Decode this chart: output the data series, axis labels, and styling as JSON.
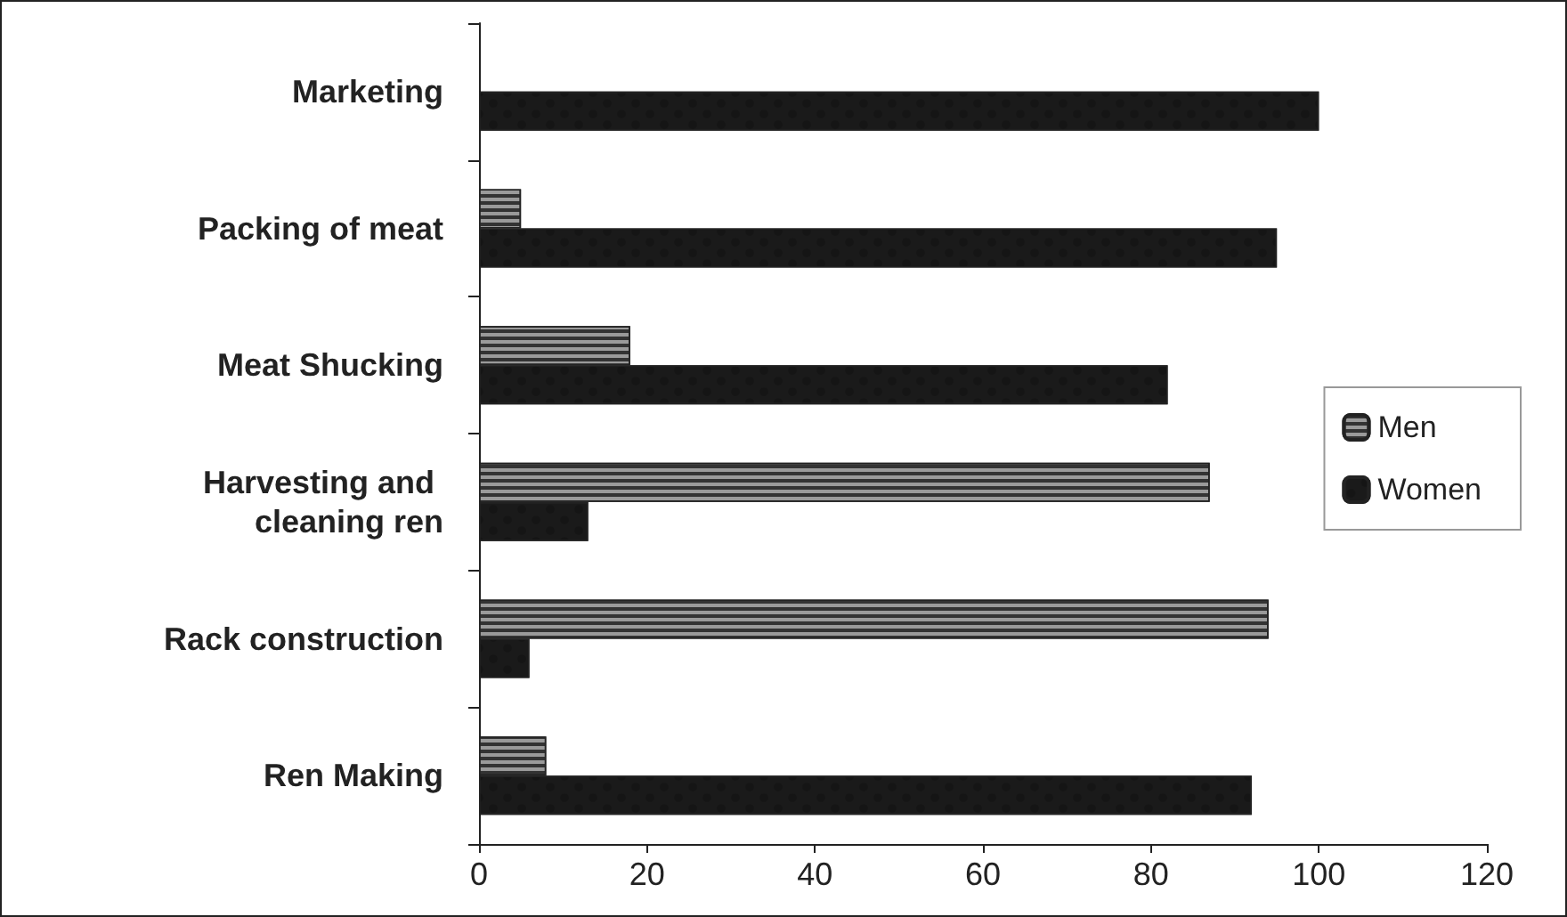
{
  "chart_data": {
    "type": "bar",
    "orientation": "horizontal",
    "categories": [
      "Marketing",
      "Packing of meat",
      "Meat Shucking",
      "Harvesting and cleaning ren",
      "Rack construction",
      "Ren Making"
    ],
    "series": [
      {
        "name": "Men",
        "color": "#9a9a9a",
        "values": [
          null,
          5,
          18,
          87,
          94,
          8
        ]
      },
      {
        "name": "Women",
        "color": "#1a1a1a",
        "values": [
          100,
          95,
          82,
          13,
          6,
          92
        ]
      }
    ],
    "xlim": [
      0,
      120
    ],
    "xticks": [
      0,
      20,
      40,
      60,
      80,
      100,
      120
    ],
    "grid": false,
    "legend": "right"
  }
}
